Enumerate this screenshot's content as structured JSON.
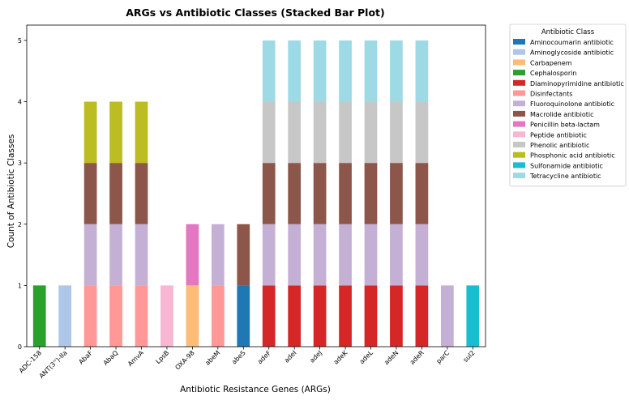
{
  "chart_data": {
    "type": "bar",
    "stacked": true,
    "title": "ARGs vs Antibiotic Classes (Stacked Bar Plot)",
    "xlabel": "Antibiotic Resistance Genes (ARGs)",
    "ylabel": "Count of Antibiotic Classes",
    "ylim": [
      0,
      5.25
    ],
    "yticks": [
      "0",
      "1",
      "2",
      "3",
      "4",
      "5"
    ],
    "grid": false,
    "legend_position": "outside-right",
    "legend_title": "Antibiotic Class",
    "categories": [
      "ADC-158",
      "ANT(3'')-IIa",
      "AbaF",
      "AbaQ",
      "AmvA",
      "LpsB",
      "OXA-98",
      "abeM",
      "abeS",
      "adeF",
      "adeI",
      "adeJ",
      "adeK",
      "adeL",
      "adeN",
      "adeR",
      "parC",
      "sul2"
    ],
    "series": [
      {
        "name": "Aminocoumarin antibiotic",
        "color": "#1f77b4",
        "values": [
          0,
          0,
          0,
          0,
          0,
          0,
          0,
          0,
          1,
          0,
          0,
          0,
          0,
          0,
          0,
          0,
          0,
          0
        ]
      },
      {
        "name": "Aminoglycoside antibiotic",
        "color": "#aec7e8",
        "values": [
          0,
          1,
          0,
          0,
          0,
          0,
          0,
          0,
          0,
          0,
          0,
          0,
          0,
          0,
          0,
          0,
          0,
          0
        ]
      },
      {
        "name": "Carbapenem",
        "color": "#ffbb78",
        "values": [
          0,
          0,
          0,
          0,
          0,
          0,
          1,
          0,
          0,
          0,
          0,
          0,
          0,
          0,
          0,
          0,
          0,
          0
        ]
      },
      {
        "name": "Cephalosporin",
        "color": "#2ca02c",
        "values": [
          1,
          0,
          0,
          0,
          0,
          0,
          0,
          0,
          0,
          0,
          0,
          0,
          0,
          0,
          0,
          0,
          0,
          0
        ]
      },
      {
        "name": "Diaminopyrimidine antibiotic",
        "color": "#d62728",
        "values": [
          0,
          0,
          0,
          0,
          0,
          0,
          0,
          0,
          0,
          1,
          1,
          1,
          1,
          1,
          1,
          1,
          0,
          0
        ]
      },
      {
        "name": "Disinfectants",
        "color": "#ff9896",
        "values": [
          0,
          0,
          1,
          1,
          1,
          0,
          0,
          1,
          0,
          0,
          0,
          0,
          0,
          0,
          0,
          0,
          0,
          0
        ]
      },
      {
        "name": "Fluoroquinolone antibiotic",
        "color": "#c5b0d5",
        "values": [
          0,
          0,
          1,
          1,
          1,
          0,
          0,
          1,
          0,
          1,
          1,
          1,
          1,
          1,
          1,
          1,
          1,
          0
        ]
      },
      {
        "name": "Macrolide antibiotic",
        "color": "#8c564b",
        "values": [
          0,
          0,
          1,
          1,
          1,
          0,
          0,
          0,
          1,
          1,
          1,
          1,
          1,
          1,
          1,
          1,
          0,
          0
        ]
      },
      {
        "name": "Penicillin beta-lactam",
        "color": "#e377c2",
        "values": [
          0,
          0,
          0,
          0,
          0,
          0,
          1,
          0,
          0,
          0,
          0,
          0,
          0,
          0,
          0,
          0,
          0,
          0
        ]
      },
      {
        "name": "Peptide antibiotic",
        "color": "#f7b6d2",
        "values": [
          0,
          0,
          0,
          0,
          0,
          1,
          0,
          0,
          0,
          0,
          0,
          0,
          0,
          0,
          0,
          0,
          0,
          0
        ]
      },
      {
        "name": "Phenolic antibiotic",
        "color": "#c7c7c7",
        "values": [
          0,
          0,
          0,
          0,
          0,
          0,
          0,
          0,
          0,
          1,
          1,
          1,
          1,
          1,
          1,
          1,
          0,
          0
        ]
      },
      {
        "name": "Phosphonic acid antibiotic",
        "color": "#bcbd22",
        "values": [
          0,
          0,
          1,
          1,
          1,
          0,
          0,
          0,
          0,
          0,
          0,
          0,
          0,
          0,
          0,
          0,
          0,
          0
        ]
      },
      {
        "name": "Sulfonamide antibiotic",
        "color": "#17becf",
        "values": [
          0,
          0,
          0,
          0,
          0,
          0,
          0,
          0,
          0,
          0,
          0,
          0,
          0,
          0,
          0,
          0,
          0,
          1
        ]
      },
      {
        "name": "Tetracycline antibiotic",
        "color": "#9edae5",
        "values": [
          0,
          0,
          0,
          0,
          0,
          0,
          0,
          0,
          0,
          1,
          1,
          1,
          1,
          1,
          1,
          1,
          0,
          0
        ]
      }
    ]
  }
}
